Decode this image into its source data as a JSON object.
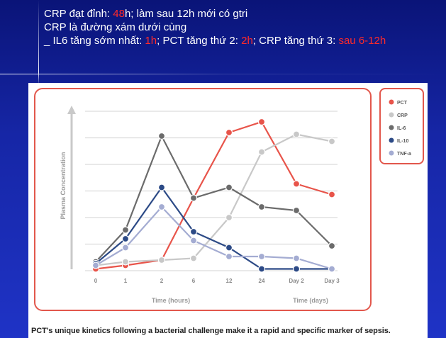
{
  "header": {
    "line1": {
      "a": "CRP đạt đỉnh: ",
      "b": "48",
      "c": "h;  làm sau 12h mới có gtri"
    },
    "line2": "CRP là đường xám dưới cùng",
    "line3": {
      "a": "_ IL6 tăng sớm nhất: ",
      "b": "1h",
      "c": "; PCT tăng thứ 2: ",
      "d": "2h",
      "e": "; CRP tăng thứ 3: ",
      "f": "sau 6-12h"
    }
  },
  "caption": "PCT's unique kinetics following a bacterial challenge make it a rapid and specific marker of sepsis.",
  "colors": {
    "highlight": "#ff2a2a",
    "frame": "#e2574c",
    "background": "#1626a6"
  },
  "chart_data": {
    "type": "line",
    "title": "",
    "ylabel": "Plasma Concentration",
    "xlabel_hours": "Time (hours)",
    "xlabel_days": "Time (days)",
    "categories": [
      "0",
      "1",
      "2",
      "6",
      "12",
      "24",
      "Day 2",
      "Day 3"
    ],
    "ylim": [
      0,
      9
    ],
    "grid": true,
    "legend_position": "right",
    "series": [
      {
        "name": "PCT",
        "color": "#e8544a",
        "values": [
          0.1,
          0.3,
          0.6,
          4.1,
          7.8,
          8.4,
          4.9,
          4.3
        ]
      },
      {
        "name": "CRP",
        "color": "#c8c8c8",
        "values": [
          0.3,
          0.5,
          0.6,
          0.7,
          3.0,
          6.7,
          7.7,
          7.3
        ]
      },
      {
        "name": "IL-6",
        "color": "#6b6b6b",
        "values": [
          0.5,
          2.3,
          7.6,
          4.1,
          4.7,
          3.6,
          3.4,
          1.4
        ]
      },
      {
        "name": "IL-10",
        "color": "#2c4a86",
        "values": [
          0.4,
          1.8,
          4.7,
          2.2,
          1.3,
          0.1,
          0.1,
          0.1
        ]
      },
      {
        "name": "TNF-a",
        "color": "#a4acd2",
        "values": [
          0.3,
          1.3,
          3.6,
          1.7,
          0.8,
          0.8,
          0.7,
          0.1
        ]
      }
    ]
  }
}
